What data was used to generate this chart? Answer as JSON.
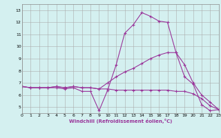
{
  "title": "",
  "xlabel": "Windchill (Refroidissement éolien,°C)",
  "background_color": "#d4f0f0",
  "grid_color": "#aaaaaa",
  "line_color": "#993399",
  "xlim": [
    0,
    23
  ],
  "ylim": [
    4.5,
    13.5
  ],
  "xticks": [
    0,
    1,
    2,
    3,
    4,
    5,
    6,
    7,
    8,
    9,
    10,
    11,
    12,
    13,
    14,
    15,
    16,
    17,
    18,
    19,
    20,
    21,
    22,
    23
  ],
  "yticks": [
    5,
    6,
    7,
    8,
    9,
    10,
    11,
    12,
    13
  ],
  "series": [
    [
      6.7,
      6.6,
      6.6,
      6.6,
      6.6,
      6.5,
      6.6,
      6.3,
      6.3,
      4.7,
      6.4,
      8.5,
      11.1,
      11.8,
      12.8,
      12.5,
      12.1,
      12.0,
      9.5,
      7.5,
      6.9,
      5.2,
      4.7,
      4.8
    ],
    [
      6.7,
      6.6,
      6.6,
      6.6,
      6.7,
      6.6,
      6.7,
      6.6,
      6.6,
      6.5,
      7.0,
      7.5,
      7.9,
      8.2,
      8.6,
      9.0,
      9.3,
      9.5,
      9.5,
      8.5,
      7.0,
      6.0,
      5.4,
      4.8
    ],
    [
      6.7,
      6.6,
      6.6,
      6.6,
      6.7,
      6.6,
      6.7,
      6.6,
      6.6,
      6.5,
      6.5,
      6.4,
      6.4,
      6.4,
      6.4,
      6.4,
      6.4,
      6.4,
      6.3,
      6.3,
      6.1,
      5.7,
      5.1,
      4.8
    ]
  ],
  "label_fontsize": 4.5,
  "tick_fontsize": 4.5,
  "xlabel_fontsize": 5.0,
  "linewidth": 0.8,
  "markersize": 2.5
}
